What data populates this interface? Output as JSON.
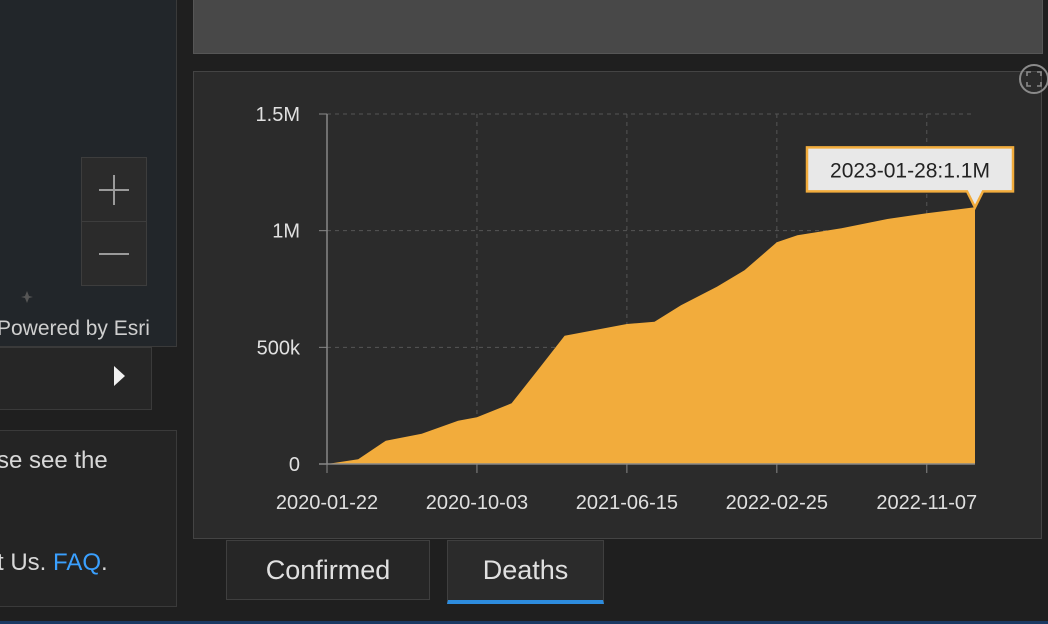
{
  "map": {
    "zoom_in_label": "Zoom in",
    "zoom_out_label": "Zoom out",
    "attribution": "Powered by Esri"
  },
  "info": {
    "line1": "se see the",
    "line2_prefix": "t Us.",
    "faq_link": "FAQ",
    "line2_suffix": "."
  },
  "tabs": {
    "confirmed": "Confirmed",
    "deaths": "Deaths",
    "active": "Deaths"
  },
  "colors": {
    "area": "#f2ac3c",
    "tab_active": "#2d8cde",
    "link": "#3aa0ff"
  },
  "chart_data": {
    "type": "area",
    "series": [
      {
        "x": [
          "2020-01-22",
          "2020-03-15",
          "2020-05-01",
          "2020-07-01",
          "2020-09-01",
          "2020-10-03",
          "2020-12-01",
          "2021-01-20",
          "2021-03-01",
          "2021-06-15",
          "2021-08-01",
          "2021-09-15",
          "2021-11-15",
          "2022-01-01",
          "2022-02-25",
          "2022-04-01",
          "2022-06-15",
          "2022-09-01",
          "2022-11-07",
          "2023-01-28"
        ],
        "values": [
          0,
          20000,
          100000,
          130000,
          185000,
          200000,
          260000,
          420000,
          550000,
          600000,
          610000,
          680000,
          760000,
          830000,
          950000,
          980000,
          1010000,
          1050000,
          1075000,
          1100000
        ]
      }
    ],
    "x_ticks": [
      "2020-01-22",
      "2020-10-03",
      "2021-06-15",
      "2022-02-25",
      "2022-11-07"
    ],
    "y_ticks": [
      "0",
      "500k",
      "1M",
      "1.5M"
    ],
    "y_tick_values": [
      0,
      500000,
      1000000,
      1500000
    ],
    "ylim": [
      0,
      1500000
    ],
    "xlim": [
      "2020-01-22",
      "2023-01-28"
    ],
    "grid": true,
    "tooltip": "2023-01-28:1.1M"
  }
}
